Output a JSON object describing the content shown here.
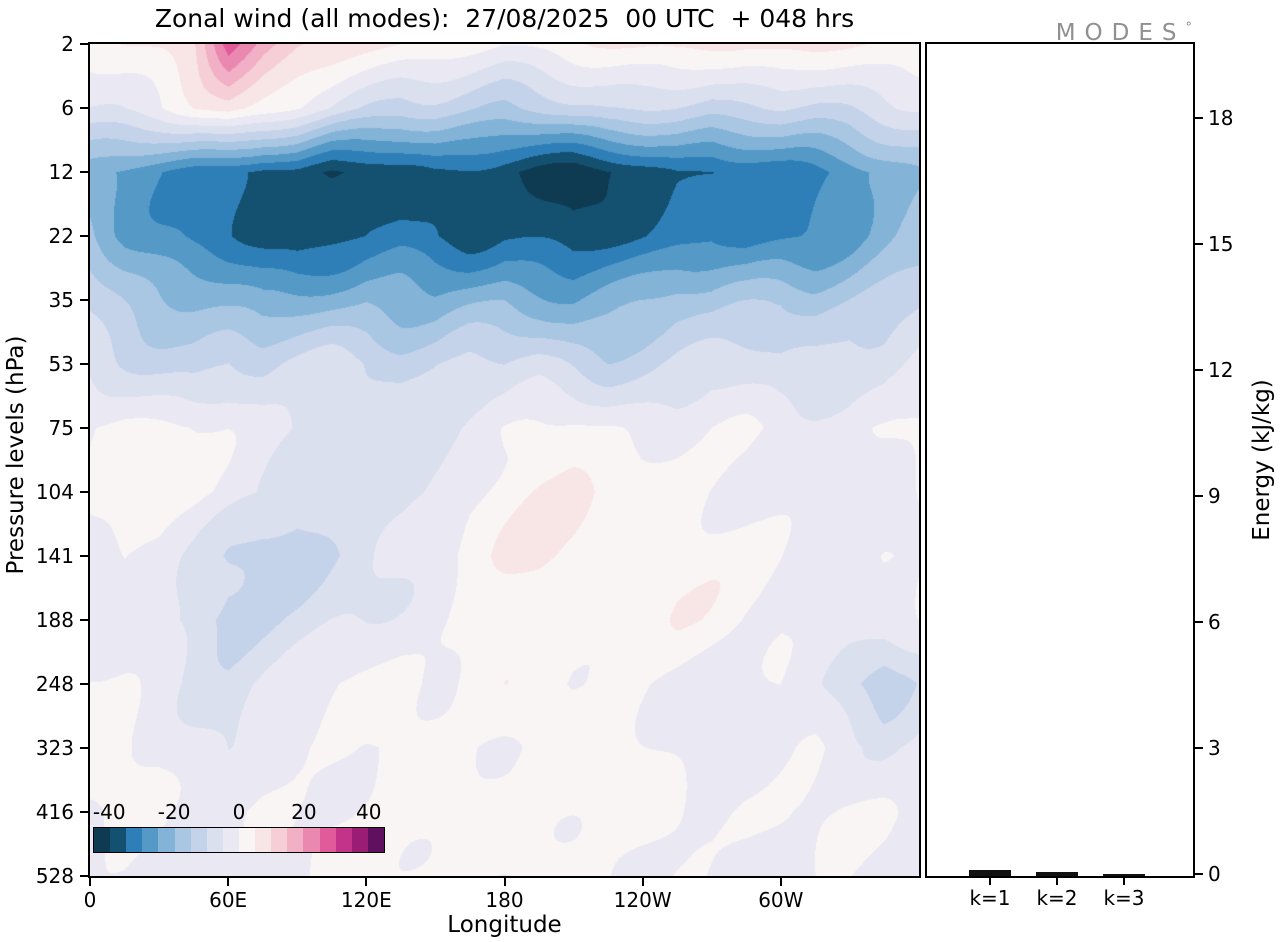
{
  "title": "Zonal wind (all modes):  27/08/2025  00 UTC  + 048 hrs",
  "logo": {
    "text": "MODES",
    "mark": "°",
    "color": "#909090"
  },
  "axes": {
    "left_label": "Pressure levels (hPa)",
    "bottom_label": "Longitude",
    "right_label": "Energy (kJ/kg)"
  },
  "chart_data": [
    {
      "type": "heatmap",
      "title": "Zonal wind (all modes): 27/08/2025 00 UTC + 048 hrs",
      "xlabel": "Longitude",
      "ylabel": "Pressure levels (hPa)",
      "x_range": [
        0,
        360
      ],
      "x_ticks": [
        {
          "value": 0,
          "label": "0"
        },
        {
          "value": 60,
          "label": "60E"
        },
        {
          "value": 120,
          "label": "120E"
        },
        {
          "value": 180,
          "label": "180"
        },
        {
          "value": 240,
          "label": "120W"
        },
        {
          "value": 300,
          "label": "60W"
        }
      ],
      "pressure_levels": [
        2,
        6,
        12,
        22,
        35,
        53,
        75,
        104,
        141,
        188,
        248,
        323,
        416,
        528
      ],
      "y_tick_labels": [
        "2",
        "6",
        "12",
        "22",
        "35",
        "53",
        "75",
        "104",
        "141",
        "188",
        "248",
        "323",
        "416",
        "528"
      ],
      "lon_grid_step_deg": 15,
      "contour_levels": {
        "min": -45,
        "max": 45,
        "step": 5
      },
      "colorbar": {
        "ticks": [
          -40,
          -20,
          0,
          20,
          40
        ],
        "colors": [
          "#0e3a52",
          "#14506f",
          "#2e7fb8",
          "#5599c7",
          "#83b3d7",
          "#a9c7e2",
          "#c5d3ea",
          "#dbe0ef",
          "#eae9f3",
          "#f9f5f4",
          "#f8e5e6",
          "#f6ced6",
          "#f1b0c5",
          "#eb88af",
          "#e15a99",
          "#c33389",
          "#9a1c75",
          "#5f1160"
        ]
      },
      "values": [
        [
          0,
          3,
          6,
          10,
          26,
          16,
          11,
          9,
          6,
          4,
          2,
          1,
          0,
          2,
          3,
          4,
          6,
          7,
          6,
          5,
          6,
          7,
          6,
          5,
          3
        ],
        [
          -6,
          -4,
          -2,
          2,
          6,
          3,
          0,
          -4,
          -8,
          -12,
          -12,
          -13,
          -14,
          -12,
          -10,
          -9,
          -10,
          -12,
          -14,
          -12,
          -10,
          -11,
          -10,
          -8,
          -6
        ],
        [
          -22,
          -26,
          -30,
          -34,
          -36,
          -38,
          -36,
          -40,
          -38,
          -36,
          -34,
          -36,
          -38,
          -40,
          -42,
          -40,
          -38,
          -36,
          -38,
          -36,
          -34,
          -32,
          -30,
          -26,
          -22
        ],
        [
          -18,
          -24,
          -28,
          -32,
          -34,
          -36,
          -38,
          -36,
          -34,
          -32,
          -34,
          -36,
          -34,
          -36,
          -38,
          -36,
          -34,
          -32,
          -30,
          -32,
          -30,
          -28,
          -26,
          -22,
          -18
        ],
        [
          -12,
          -16,
          -20,
          -22,
          -24,
          -26,
          -24,
          -22,
          -20,
          -22,
          -24,
          -22,
          -20,
          -22,
          -24,
          -22,
          -20,
          -18,
          -20,
          -18,
          -16,
          -18,
          -16,
          -14,
          -12
        ],
        [
          -6,
          -8,
          -10,
          -12,
          -10,
          -12,
          -10,
          -8,
          -10,
          -12,
          -10,
          -8,
          -10,
          -8,
          -10,
          -12,
          -10,
          -8,
          -6,
          -8,
          -10,
          -8,
          -6,
          -8,
          -6
        ],
        [
          2,
          3,
          2,
          1,
          0,
          -2,
          -4,
          -6,
          -8,
          -6,
          -4,
          -2,
          0,
          1,
          2,
          1,
          0,
          -1,
          0,
          1,
          0,
          -1,
          -2,
          0,
          2
        ],
        [
          1,
          2,
          3,
          2,
          0,
          -2,
          -6,
          -8,
          -10,
          -8,
          -4,
          0,
          2,
          4,
          5,
          4,
          3,
          2,
          1,
          0,
          -1,
          -2,
          -1,
          0,
          1
        ],
        [
          0,
          1,
          0,
          -4,
          -10,
          -14,
          -16,
          -12,
          -8,
          -4,
          0,
          2,
          4,
          6,
          5,
          4,
          5,
          6,
          4,
          2,
          0,
          -2,
          -1,
          0,
          0
        ],
        [
          -1,
          0,
          -2,
          -8,
          -12,
          -10,
          -8,
          -6,
          -4,
          -2,
          0,
          1,
          3,
          4,
          3,
          2,
          3,
          4,
          3,
          1,
          0,
          -2,
          -3,
          -2,
          -1
        ],
        [
          2,
          0,
          -2,
          -4,
          -6,
          -4,
          -2,
          -1,
          0,
          1,
          0,
          1,
          2,
          1,
          0,
          1,
          0,
          -1,
          -2,
          -1,
          0,
          -4,
          -9,
          -14,
          -8
        ],
        [
          1,
          0,
          0,
          -2,
          -4,
          -2,
          0,
          -1,
          -2,
          0,
          1,
          0,
          -1,
          0,
          1,
          2,
          1,
          0,
          -1,
          -2,
          -1,
          0,
          -2,
          -3,
          -2
        ],
        [
          -1,
          0,
          -1,
          -2,
          -1,
          0,
          -1,
          0,
          1,
          2,
          1,
          2,
          3,
          2,
          1,
          0,
          1,
          0,
          -1,
          0,
          -1,
          -2,
          -1,
          0,
          -1
        ],
        [
          0,
          0,
          -1,
          0,
          -1,
          0,
          0,
          1,
          0,
          1,
          2,
          1,
          0,
          1,
          0,
          0,
          -1,
          0,
          0,
          -1,
          0,
          -1,
          0,
          0,
          0
        ]
      ]
    },
    {
      "type": "bar",
      "categories": [
        "k=1",
        "k=2",
        "k=3"
      ],
      "values": [
        0.14,
        0.09,
        0.05
      ],
      "ylabel": "Energy (kJ/kg)",
      "ylim": [
        0,
        19.8
      ],
      "y_ticks": [
        0,
        3,
        6,
        9,
        12,
        15,
        18
      ],
      "bar_color": "#111111"
    }
  ]
}
